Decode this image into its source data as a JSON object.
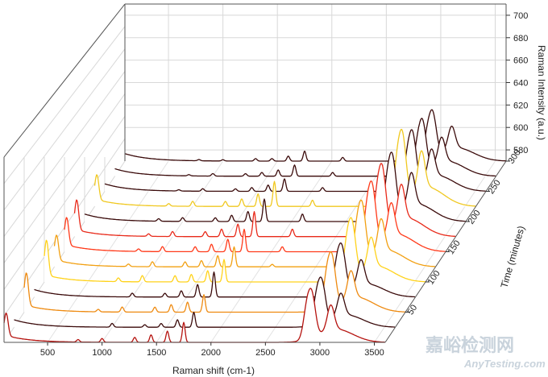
{
  "chart_data": {
    "type": "line",
    "subtype": "3d-waterfall",
    "title": "",
    "xlabel": "Raman shift (cm-1)",
    "ylabel": "Time (minutes)",
    "zlabel": "Raman Intensity (a.u.)",
    "xlim": [
      100,
      3600
    ],
    "ylim": [
      0,
      300
    ],
    "zlim": [
      570,
      710
    ],
    "x_ticks": [
      500,
      1000,
      1500,
      2000,
      2500,
      3000,
      3500
    ],
    "y_ticks": [
      50,
      100,
      150,
      200,
      250,
      300
    ],
    "z_ticks": [
      580,
      600,
      620,
      640,
      660,
      680,
      700
    ],
    "grid": true,
    "peak_positions": [
      120,
      780,
      1000,
      1300,
      1450,
      1600,
      1750,
      2100,
      2880,
      2930,
      3100
    ],
    "series": [
      {
        "time": 0,
        "color": "#b5120e",
        "peak_heights": [
          18,
          2,
          3,
          4,
          6,
          9,
          16,
          0,
          24,
          30,
          20
        ]
      },
      {
        "time": 25,
        "color": "#3a0a0a",
        "peak_heights": [
          0,
          0,
          3,
          2,
          3,
          6,
          12,
          0,
          22,
          28,
          18
        ]
      },
      {
        "time": 50,
        "color": "#ee8a10",
        "peak_heights": [
          26,
          2,
          4,
          4,
          6,
          8,
          14,
          0,
          26,
          34,
          22
        ]
      },
      {
        "time": 75,
        "color": "#3a0a0a",
        "peak_heights": [
          0,
          0,
          3,
          3,
          5,
          10,
          20,
          0,
          24,
          30,
          20
        ]
      },
      {
        "time": 100,
        "color": "#ffd21a",
        "peak_heights": [
          28,
          3,
          5,
          5,
          6,
          9,
          18,
          0,
          28,
          36,
          24
        ]
      },
      {
        "time": 125,
        "color": "#f2a012",
        "peak_heights": [
          20,
          2,
          4,
          4,
          5,
          9,
          16,
          2,
          28,
          38,
          26
        ]
      },
      {
        "time": 150,
        "color": "#ff3a1a",
        "peak_heights": [
          22,
          2,
          4,
          4,
          6,
          10,
          18,
          4,
          30,
          40,
          26
        ]
      },
      {
        "time": 175,
        "color": "#e82a1a",
        "peak_heights": [
          24,
          2,
          4,
          4,
          6,
          10,
          20,
          6,
          30,
          42,
          28
        ]
      },
      {
        "time": 200,
        "color": "#3a0a0a",
        "peak_heights": [
          0,
          2,
          3,
          3,
          5,
          8,
          18,
          6,
          28,
          40,
          26
        ]
      },
      {
        "time": 225,
        "color": "#f0c820",
        "peak_heights": [
          20,
          2,
          4,
          4,
          6,
          10,
          20,
          5,
          32,
          44,
          30
        ]
      },
      {
        "time": 250,
        "color": "#3a0a0a",
        "peak_heights": [
          0,
          1,
          2,
          2,
          3,
          5,
          10,
          3,
          24,
          36,
          22
        ]
      },
      {
        "time": 275,
        "color": "#3a0a0a",
        "peak_heights": [
          0,
          1,
          2,
          2,
          3,
          5,
          9,
          3,
          22,
          34,
          20
        ]
      },
      {
        "time": 300,
        "color": "#3a0a0a",
        "peak_heights": [
          0,
          1,
          1,
          2,
          2,
          4,
          8,
          3,
          20,
          30,
          18
        ]
      }
    ]
  },
  "watermark": {
    "cn": "嘉峪检测网",
    "en": "AnyTesting.com"
  }
}
